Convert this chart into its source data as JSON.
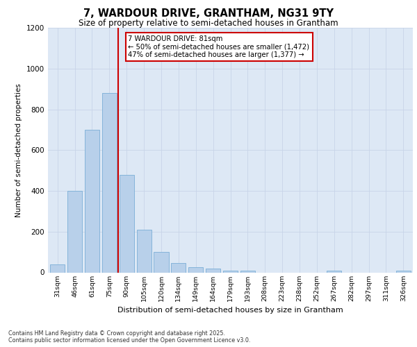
{
  "title_line1": "7, WARDOUR DRIVE, GRANTHAM, NG31 9TY",
  "title_line2": "Size of property relative to semi-detached houses in Grantham",
  "xlabel": "Distribution of semi-detached houses by size in Grantham",
  "ylabel": "Number of semi-detached properties",
  "categories": [
    "31sqm",
    "46sqm",
    "61sqm",
    "75sqm",
    "90sqm",
    "105sqm",
    "120sqm",
    "134sqm",
    "149sqm",
    "164sqm",
    "179sqm",
    "193sqm",
    "208sqm",
    "223sqm",
    "238sqm",
    "252sqm",
    "267sqm",
    "282sqm",
    "297sqm",
    "311sqm",
    "326sqm"
  ],
  "values": [
    40,
    400,
    700,
    880,
    480,
    210,
    100,
    45,
    25,
    18,
    10,
    8,
    0,
    0,
    0,
    0,
    10,
    0,
    0,
    0,
    10
  ],
  "bar_color": "#b8d0ea",
  "bar_edge_color": "#7aaed6",
  "vline_x_idx": 3.5,
  "vline_color": "#cc0000",
  "annotation_title": "7 WARDOUR DRIVE: 81sqm",
  "annotation_line1": "← 50% of semi-detached houses are smaller (1,472)",
  "annotation_line2": "47% of semi-detached houses are larger (1,377) →",
  "annotation_box_color": "#cc0000",
  "ylim": [
    0,
    1200
  ],
  "yticks": [
    0,
    200,
    400,
    600,
    800,
    1000,
    1200
  ],
  "grid_color": "#c8d4e8",
  "background_color": "#dde8f5",
  "footnote1": "Contains HM Land Registry data © Crown copyright and database right 2025.",
  "footnote2": "Contains public sector information licensed under the Open Government Licence v3.0."
}
